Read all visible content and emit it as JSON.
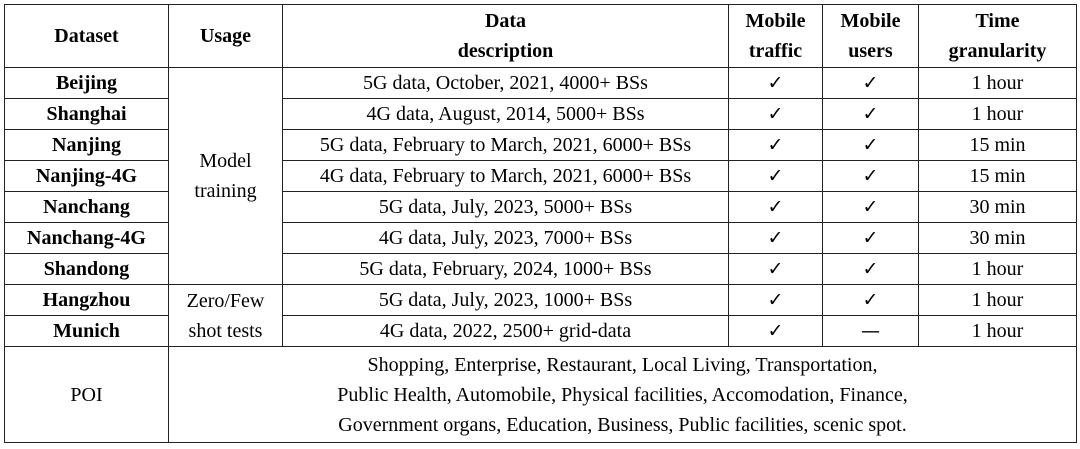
{
  "headers": {
    "dataset": "Dataset",
    "usage": "Usage",
    "desc_l1": "Data",
    "desc_l2": "description",
    "traffic_l1": "Mobile",
    "traffic_l2": "traffic",
    "users_l1": "Mobile",
    "users_l2": "users",
    "time_l1": "Time",
    "time_l2": "granularity"
  },
  "usage_groups": {
    "model_training_l1": "Model",
    "model_training_l2": "training",
    "zero_few_l1": "Zero/Few",
    "zero_few_l2": "shot tests"
  },
  "rows": [
    {
      "dataset": "Beijing",
      "desc": "5G data, October, 2021, 4000+ BSs",
      "traffic": "✓",
      "users": "✓",
      "time": "1 hour"
    },
    {
      "dataset": "Shanghai",
      "desc": "4G data, August, 2014, 5000+ BSs",
      "traffic": "✓",
      "users": "✓",
      "time": "1 hour"
    },
    {
      "dataset": "Nanjing",
      "desc": "5G data, February to March, 2021, 6000+ BSs",
      "traffic": "✓",
      "users": "✓",
      "time": "15 min"
    },
    {
      "dataset": "Nanjing-4G",
      "desc": "4G data, February to March, 2021, 6000+ BSs",
      "traffic": "✓",
      "users": "✓",
      "time": "15 min"
    },
    {
      "dataset": "Nanchang",
      "desc": "5G data, July, 2023, 5000+ BSs",
      "traffic": "✓",
      "users": "✓",
      "time": "30 min"
    },
    {
      "dataset": "Nanchang-4G",
      "desc": "4G data, July, 2023, 7000+ BSs",
      "traffic": "✓",
      "users": "✓",
      "time": "30 min"
    },
    {
      "dataset": "Shandong",
      "desc": "5G data, February, 2024, 1000+ BSs",
      "traffic": "✓",
      "users": "✓",
      "time": "1 hour"
    },
    {
      "dataset": "Hangzhou",
      "desc": "5G data, July, 2023, 1000+ BSs",
      "traffic": "✓",
      "users": "✓",
      "time": "1 hour"
    },
    {
      "dataset": "Munich",
      "desc": "4G data, 2022, 2500+ grid-data",
      "traffic": "✓",
      "users": "—",
      "time": "1 hour"
    }
  ],
  "poi": {
    "label": "POI",
    "line1": "Shopping, Enterprise, Restaurant, Local Living, Transportation,",
    "line2": "Public Health, Automobile, Physical facilities, Accomodation, Finance,",
    "line3": "Government organs, Education, Business, Public facilities, scenic spot."
  }
}
